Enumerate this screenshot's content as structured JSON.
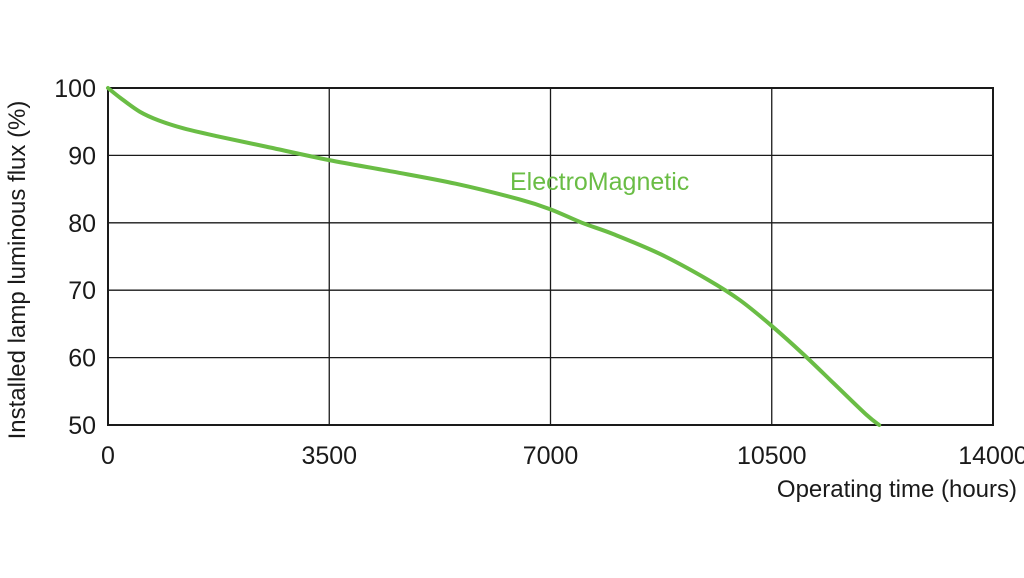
{
  "chart_data": {
    "type": "line",
    "title": "",
    "xlabel": "Operating time (hours)",
    "ylabel": "Installed lamp luminous flux  (%)",
    "xlim": [
      0,
      14000
    ],
    "ylim": [
      50,
      100
    ],
    "x_ticks": [
      0,
      3500,
      7000,
      10500,
      14000
    ],
    "y_ticks": [
      50,
      60,
      70,
      80,
      90,
      100
    ],
    "grid": true,
    "series": [
      {
        "name": "ElectroMagnetic",
        "color": "#6abd45",
        "points": [
          [
            0,
            100
          ],
          [
            200,
            98.5
          ],
          [
            500,
            96.5
          ],
          [
            800,
            95.2
          ],
          [
            1200,
            94.0
          ],
          [
            1750,
            92.8
          ],
          [
            2500,
            91.3
          ],
          [
            3500,
            89.3
          ],
          [
            4500,
            87.6
          ],
          [
            5500,
            85.8
          ],
          [
            6500,
            83.5
          ],
          [
            7000,
            82.0
          ],
          [
            7500,
            80.0
          ],
          [
            8000,
            78.3
          ],
          [
            8750,
            75.3
          ],
          [
            9500,
            71.5
          ],
          [
            10000,
            68.5
          ],
          [
            10500,
            64.7
          ],
          [
            11000,
            60.5
          ],
          [
            11500,
            56.0
          ],
          [
            12000,
            51.5
          ],
          [
            12200,
            50.0
          ]
        ]
      }
    ]
  }
}
